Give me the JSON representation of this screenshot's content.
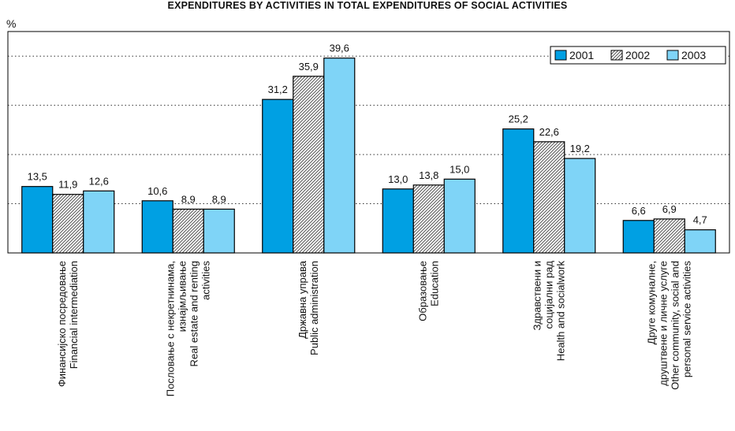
{
  "title": "EXPENDITURES BY ACTIVITIES IN TOTAL EXPENDITURES OF SOCIAL ACTIVITIES",
  "unit_label": "%",
  "colors": {
    "s2001": "#00a0e3",
    "s2002_fill": "#ffffff",
    "s2002_hatch": "#555555",
    "s2003": "#7fd4f7",
    "grid": "#333333",
    "border": "#000000"
  },
  "chart_data": {
    "type": "bar",
    "title": "EXPENDITURES BY ACTIVITIES IN TOTAL EXPENDITURES OF SOCIAL ACTIVITIES",
    "ylabel": "%",
    "ylim": [
      0,
      45
    ],
    "grid": "horizontal dotted",
    "legend_position": "top-right",
    "categories": [
      [
        "Финансијско посредовање",
        "Financial intermediation"
      ],
      [
        "Пословање с некретнинама,",
        "изнајмљивање",
        "Real estate and renting",
        "activities"
      ],
      [
        "Државна управа",
        "Public administration"
      ],
      [
        "Образовање",
        "Education"
      ],
      [
        "Здравствени и",
        "социјални рад",
        "Health and socialwork"
      ],
      [
        "Друге комуналне,",
        "друштвене и личне услуге",
        "Other community, social and",
        "personal service activities"
      ]
    ],
    "series": [
      {
        "name": "2001",
        "values": [
          13.5,
          10.6,
          31.2,
          13.0,
          25.2,
          6.6
        ],
        "labels": [
          "13,5",
          "10,6",
          "31,2",
          "13,0",
          "25,2",
          "6,6"
        ]
      },
      {
        "name": "2002",
        "values": [
          11.9,
          8.9,
          35.9,
          13.8,
          22.6,
          6.9
        ],
        "labels": [
          "11,9",
          "8,9",
          "35,9",
          "13,8",
          "22,6",
          "6,9"
        ]
      },
      {
        "name": "2003",
        "values": [
          12.6,
          8.9,
          39.6,
          15.0,
          19.2,
          4.7
        ],
        "labels": [
          "12,6",
          "8,9",
          "39,6",
          "15,0",
          "19,2",
          "4,7"
        ]
      }
    ]
  }
}
